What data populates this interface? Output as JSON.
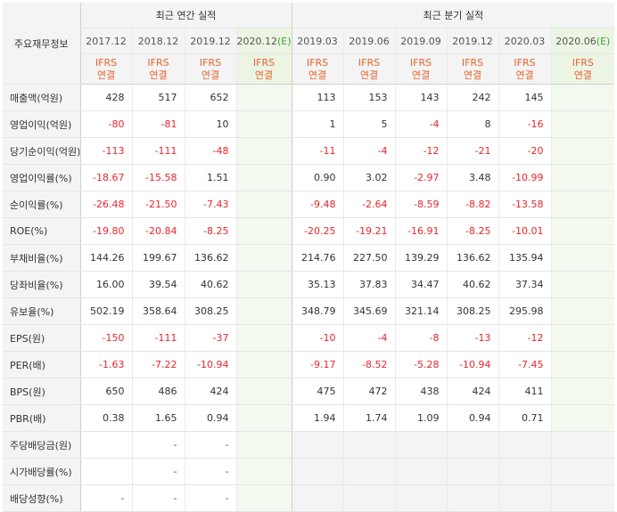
{
  "header": {
    "row_label": "주요재무정보",
    "annual_title": "최근 연간 실적",
    "quarter_title": "최근 분기 실적",
    "annual_periods": [
      "2017.12",
      "2018.12",
      "2019.12"
    ],
    "annual_estimate": {
      "period": "2020.12",
      "mark": "(E)"
    },
    "quarter_periods": [
      "2019.03",
      "2019.06",
      "2019.09",
      "2019.12",
      "2020.03"
    ],
    "quarter_estimate": {
      "period": "2020.06",
      "mark": "(E)"
    },
    "basis_line1": "IFRS",
    "basis_line2": "연결"
  },
  "rows": [
    {
      "label": "매출액(억원)",
      "annual": [
        "428",
        "517",
        "652"
      ],
      "annual_e": "",
      "quarter": [
        "113",
        "153",
        "143",
        "242",
        "145"
      ],
      "quarter_e": "",
      "group_start": false
    },
    {
      "label": "영업이익(억원)",
      "annual": [
        "-80",
        "-81",
        "10"
      ],
      "annual_e": "",
      "quarter": [
        "1",
        "5",
        "-4",
        "8",
        "-16"
      ],
      "quarter_e": "",
      "group_start": false
    },
    {
      "label": "당기순이익(억원)",
      "annual": [
        "-113",
        "-111",
        "-48"
      ],
      "annual_e": "",
      "quarter": [
        "-11",
        "-4",
        "-12",
        "-21",
        "-20"
      ],
      "quarter_e": "",
      "group_start": false
    },
    {
      "label": "영업이익률(%)",
      "annual": [
        "-18.67",
        "-15.58",
        "1.51"
      ],
      "annual_e": "",
      "quarter": [
        "0.90",
        "3.02",
        "-2.97",
        "3.48",
        "-10.99"
      ],
      "quarter_e": "",
      "group_start": true
    },
    {
      "label": "순이익률(%)",
      "annual": [
        "-26.48",
        "-21.50",
        "-7.43"
      ],
      "annual_e": "",
      "quarter": [
        "-9.48",
        "-2.64",
        "-8.59",
        "-8.82",
        "-13.58"
      ],
      "quarter_e": "",
      "group_start": false
    },
    {
      "label": "ROE(%)",
      "annual": [
        "-19.80",
        "-20.84",
        "-8.25"
      ],
      "annual_e": "",
      "quarter": [
        "-20.25",
        "-19.21",
        "-16.91",
        "-8.25",
        "-10.01"
      ],
      "quarter_e": "",
      "group_start": false
    },
    {
      "label": "부채비율(%)",
      "annual": [
        "144.26",
        "199.67",
        "136.62"
      ],
      "annual_e": "",
      "quarter": [
        "214.76",
        "227.50",
        "139.29",
        "136.62",
        "135.94"
      ],
      "quarter_e": "",
      "group_start": true
    },
    {
      "label": "당좌비율(%)",
      "annual": [
        "16.00",
        "39.54",
        "40.62"
      ],
      "annual_e": "",
      "quarter": [
        "35.13",
        "37.83",
        "34.47",
        "40.62",
        "37.34"
      ],
      "quarter_e": "",
      "group_start": false
    },
    {
      "label": "유보율(%)",
      "annual": [
        "502.19",
        "358.64",
        "308.25"
      ],
      "annual_e": "",
      "quarter": [
        "348.79",
        "345.69",
        "321.14",
        "308.25",
        "295.98"
      ],
      "quarter_e": "",
      "group_start": false
    },
    {
      "label": "EPS(원)",
      "annual": [
        "-150",
        "-111",
        "-37"
      ],
      "annual_e": "",
      "quarter": [
        "-10",
        "-4",
        "-8",
        "-13",
        "-12"
      ],
      "quarter_e": "",
      "group_start": true
    },
    {
      "label": "PER(배)",
      "annual": [
        "-1.63",
        "-7.22",
        "-10.94"
      ],
      "annual_e": "",
      "quarter": [
        "-9.17",
        "-8.52",
        "-5.28",
        "-10.94",
        "-7.45"
      ],
      "quarter_e": "",
      "group_start": false
    },
    {
      "label": "BPS(원)",
      "annual": [
        "650",
        "486",
        "424"
      ],
      "annual_e": "",
      "quarter": [
        "475",
        "472",
        "438",
        "424",
        "411"
      ],
      "quarter_e": "",
      "group_start": false
    },
    {
      "label": "PBR(배)",
      "annual": [
        "0.38",
        "1.65",
        "0.94"
      ],
      "annual_e": "",
      "quarter": [
        "1.94",
        "1.74",
        "1.09",
        "0.94",
        "0.71"
      ],
      "quarter_e": "",
      "group_start": false
    },
    {
      "label": "주당배당금(원)",
      "annual": [
        "",
        "-",
        "-"
      ],
      "annual_e": "",
      "quarter": null,
      "quarter_e": "",
      "group_start": true
    },
    {
      "label": "시가배당률(%)",
      "annual": [
        "",
        "-",
        "-"
      ],
      "annual_e": "",
      "quarter": null,
      "quarter_e": "",
      "group_start": false
    },
    {
      "label": "배당성향(%)",
      "annual": [
        "-",
        "-",
        "-"
      ],
      "annual_e": "",
      "quarter": null,
      "quarter_e": "",
      "group_start": false
    }
  ],
  "colors": {
    "negative": "#e8262b",
    "ifrs": "#e9622c",
    "estimate_mark": "#3aa339",
    "estimate_bg": "#f3f9ef"
  }
}
